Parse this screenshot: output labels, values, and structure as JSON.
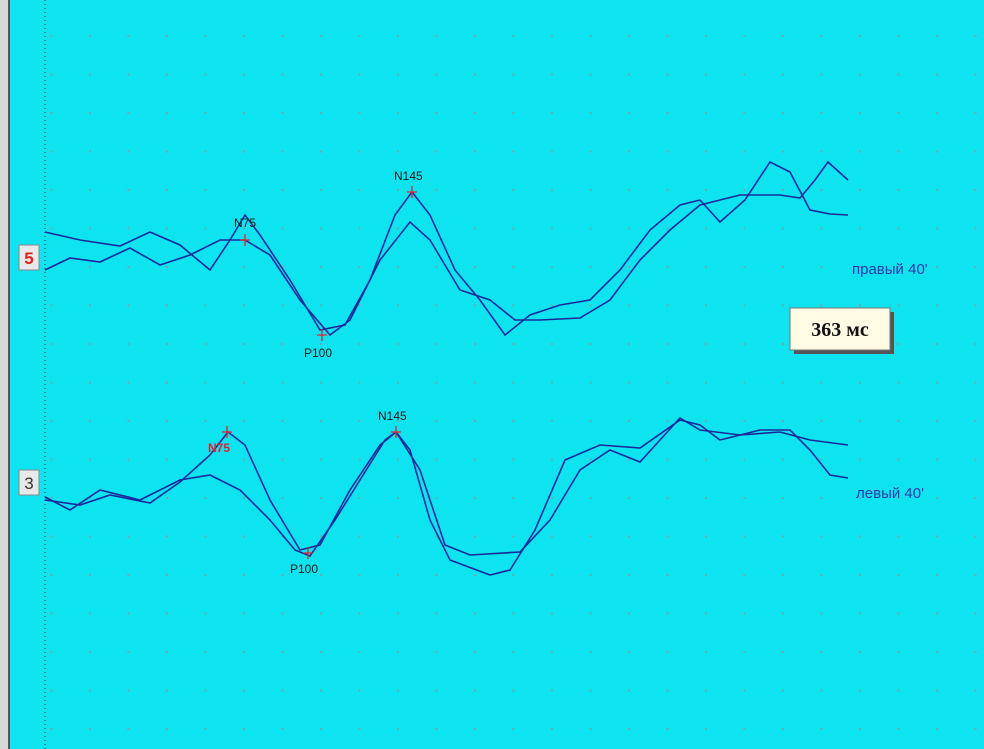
{
  "channels": [
    {
      "number": "5",
      "label": "правый 40'",
      "peaks": [
        {
          "label": "N75"
        },
        {
          "label": "P100"
        },
        {
          "label": "N145"
        }
      ]
    },
    {
      "number": "3",
      "label": "левый 40'",
      "peaks": [
        {
          "label": "N75"
        },
        {
          "label": "P100"
        },
        {
          "label": "N145"
        }
      ]
    }
  ],
  "cursor_readout": "363 мс"
}
